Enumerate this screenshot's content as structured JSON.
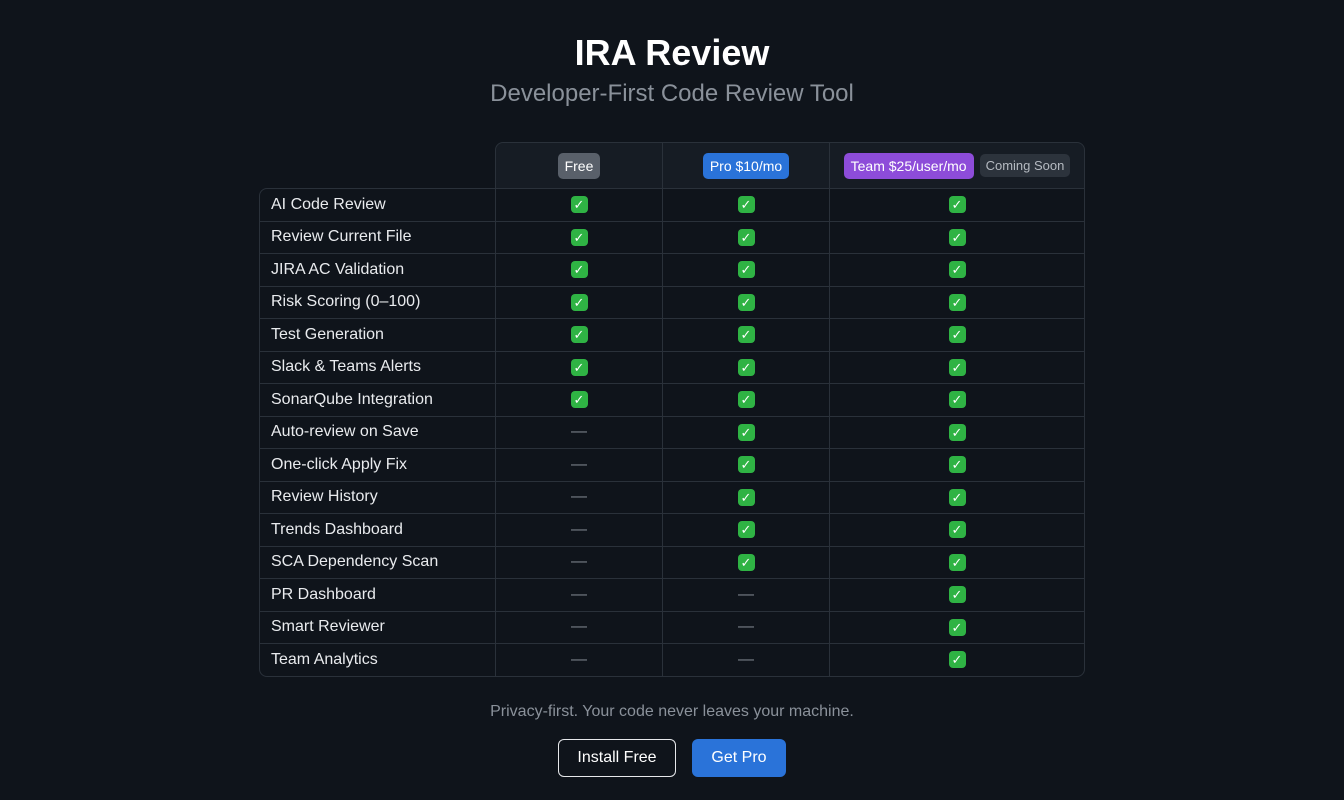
{
  "header": {
    "title": "IRA Review",
    "subtitle": "Developer-First Code Review Tool"
  },
  "plans": {
    "free": "Free",
    "pro": "Pro $10/mo",
    "team": "Team $25/user/mo",
    "team_badge": "Coming Soon"
  },
  "symbols": {
    "check": "✓",
    "dash": "—"
  },
  "features": [
    {
      "name": "AI Code Review",
      "free": true,
      "pro": true,
      "team": true
    },
    {
      "name": "Review Current File",
      "free": true,
      "pro": true,
      "team": true
    },
    {
      "name": "JIRA AC Validation",
      "free": true,
      "pro": true,
      "team": true
    },
    {
      "name": "Risk Scoring (0–100)",
      "free": true,
      "pro": true,
      "team": true
    },
    {
      "name": "Test Generation",
      "free": true,
      "pro": true,
      "team": true
    },
    {
      "name": "Slack & Teams Alerts",
      "free": true,
      "pro": true,
      "team": true
    },
    {
      "name": "SonarQube Integration",
      "free": true,
      "pro": true,
      "team": true
    },
    {
      "name": "Auto-review on Save",
      "free": false,
      "pro": true,
      "team": true
    },
    {
      "name": "One-click Apply Fix",
      "free": false,
      "pro": true,
      "team": true
    },
    {
      "name": "Review History",
      "free": false,
      "pro": true,
      "team": true
    },
    {
      "name": "Trends Dashboard",
      "free": false,
      "pro": true,
      "team": true
    },
    {
      "name": "SCA Dependency Scan",
      "free": false,
      "pro": true,
      "team": true
    },
    {
      "name": "PR Dashboard",
      "free": false,
      "pro": false,
      "team": true
    },
    {
      "name": "Smart Reviewer",
      "free": false,
      "pro": false,
      "team": true
    },
    {
      "name": "Team Analytics",
      "free": false,
      "pro": false,
      "team": true
    }
  ],
  "footer": {
    "note": "Privacy-first. Your code never leaves your machine.",
    "install_label": "Install Free",
    "pro_label": "Get Pro"
  },
  "colors": {
    "background": "#0f141b",
    "free_badge": "#59606a",
    "pro_badge": "#2a73d9",
    "team_badge": "#8d4cd9",
    "check": "#2fb344"
  }
}
